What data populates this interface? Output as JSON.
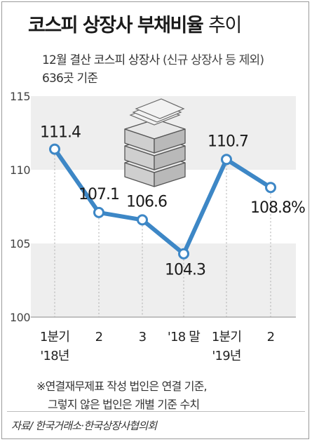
{
  "title": {
    "bold": "코스피 상장사 부채비율",
    "light": "추이"
  },
  "subtitle": {
    "line1_main": "12월 결산 코스피 상장사",
    "line1_note": "(신규 상장사 등 제외)",
    "line2": "636곳 기준"
  },
  "footnote": {
    "line1": "※연결재무제표 작성 법인은 연결 기준,",
    "line2": "그렇지 않은 법인은 개별 기준 수치"
  },
  "source": "자료/ 한국거래소·한국상장사협의회",
  "illustration": "money-stack-icon",
  "colors": {
    "line": "#3d87c6",
    "marker_fill": "#ffffff",
    "band": "#eeeeee",
    "text": "#222222"
  },
  "chart_data": {
    "type": "line",
    "categories": [
      "1분기 '18년",
      "2",
      "3",
      "'18 말",
      "1분기 '19년",
      "2"
    ],
    "category_labels": [
      [
        "1분기",
        "'18년"
      ],
      [
        "2",
        ""
      ],
      [
        "3",
        ""
      ],
      [
        "'18 말",
        ""
      ],
      [
        "1분기",
        "'19년"
      ],
      [
        "2",
        ""
      ]
    ],
    "values": [
      111.4,
      107.1,
      106.6,
      104.3,
      110.7,
      108.8
    ],
    "value_labels": [
      "111.4",
      "107.1",
      "106.6",
      "104.3",
      "110.7",
      "108.8%"
    ],
    "ylim": [
      100,
      115
    ],
    "yticks": [
      100,
      105,
      110,
      115
    ],
    "ylabel": "",
    "xlabel": "",
    "grid": "alternating horizontal bands"
  }
}
